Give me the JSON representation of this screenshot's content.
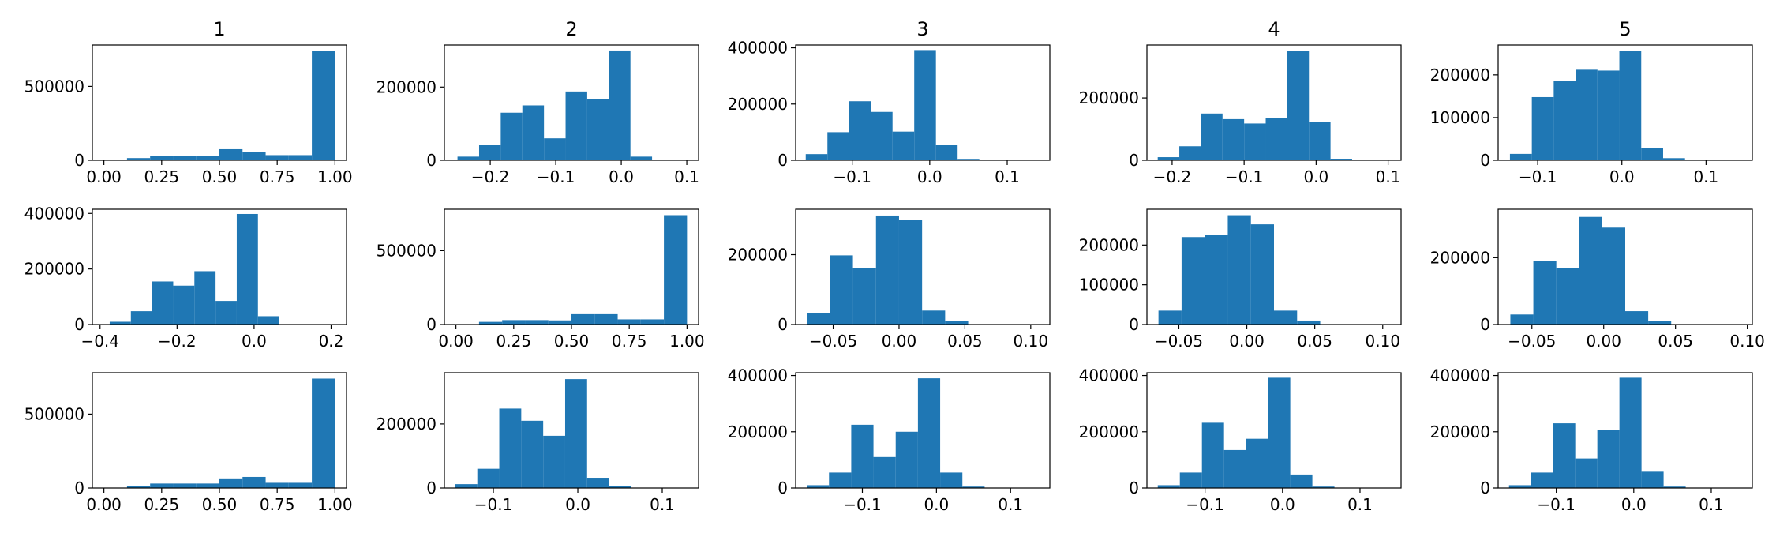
{
  "chart_data": {
    "type": "bar",
    "layout": "grid of histograms, 3 rows x 5 columns",
    "bar_color": "#1f77b4",
    "column_titles": [
      "1",
      "2",
      "3",
      "4",
      "5"
    ],
    "panels": [
      {
        "xlim": [
          -0.05,
          1.05
        ],
        "ylim": [
          0,
          780000
        ],
        "bin_edges": [
          0.0,
          0.1,
          0.2,
          0.3,
          0.4,
          0.5,
          0.6,
          0.7,
          0.8,
          0.9,
          1.0
        ],
        "counts": [
          5000,
          15000,
          30000,
          28000,
          28000,
          75000,
          58000,
          35000,
          35000,
          740000
        ],
        "xticks": [
          0.0,
          0.25,
          0.5,
          0.75,
          1.0
        ],
        "xticklabels": [
          "0.00",
          "0.25",
          "0.50",
          "0.75",
          "1.00"
        ],
        "yticks": [
          0,
          500000
        ],
        "yticklabels": [
          "0",
          "500000"
        ]
      },
      {
        "xlim": [
          -0.27,
          0.118
        ],
        "ylim": [
          0,
          315000
        ],
        "bin_edges": [
          -0.25,
          -0.217,
          -0.184,
          -0.151,
          -0.118,
          -0.085,
          -0.052,
          -0.019,
          0.014,
          0.047,
          0.08
        ],
        "counts": [
          10000,
          43000,
          130000,
          150000,
          60000,
          188000,
          168000,
          300000,
          10000,
          0
        ],
        "xticks": [
          -0.2,
          -0.1,
          0.0,
          0.1
        ],
        "xticklabels": [
          "−0.2",
          "−0.1",
          "0.0",
          "0.1"
        ],
        "yticks": [
          0,
          200000
        ],
        "yticklabels": [
          "0",
          "200000"
        ]
      },
      {
        "xlim": [
          -0.173,
          0.155
        ],
        "ylim": [
          0,
          410000
        ],
        "bin_edges": [
          -0.16,
          -0.132,
          -0.104,
          -0.076,
          -0.048,
          -0.02,
          0.008,
          0.036,
          0.064,
          0.092,
          0.12
        ],
        "counts": [
          22000,
          100000,
          210000,
          172000,
          102000,
          392000,
          55000,
          5000,
          1000,
          500
        ],
        "xticks": [
          -0.1,
          0.0,
          0.1
        ],
        "xticklabels": [
          "−0.1",
          "0.0",
          "0.1"
        ],
        "yticks": [
          0,
          200000,
          400000
        ],
        "yticklabels": [
          "0",
          "200000",
          "400000"
        ]
      },
      {
        "xlim": [
          -0.235,
          0.118
        ],
        "ylim": [
          0,
          370000
        ],
        "bin_edges": [
          -0.22,
          -0.19,
          -0.16,
          -0.13,
          -0.1,
          -0.07,
          -0.04,
          -0.01,
          0.02,
          0.05,
          0.08
        ],
        "counts": [
          10000,
          45000,
          150000,
          132000,
          118000,
          135000,
          350000,
          122000,
          5000,
          500
        ],
        "xticks": [
          -0.2,
          -0.1,
          0.0,
          0.1
        ],
        "xticklabels": [
          "−0.2",
          "−0.1",
          "0.0",
          "0.1"
        ],
        "yticks": [
          0,
          200000
        ],
        "yticklabels": [
          "0",
          "200000"
        ]
      },
      {
        "xlim": [
          -0.147,
          0.155
        ],
        "ylim": [
          0,
          270000
        ],
        "bin_edges": [
          -0.133,
          -0.107,
          -0.081,
          -0.055,
          -0.029,
          -0.003,
          0.023,
          0.049,
          0.075,
          0.101,
          0.127
        ],
        "counts": [
          15000,
          148000,
          185000,
          212000,
          210000,
          257000,
          28000,
          5000,
          1000,
          500
        ],
        "xticks": [
          -0.1,
          0.0,
          0.1
        ],
        "xticklabels": [
          "−0.1",
          "0.0",
          "0.1"
        ],
        "yticks": [
          0,
          100000,
          200000
        ],
        "yticklabels": [
          "0",
          "100000",
          "200000"
        ]
      },
      {
        "xlim": [
          -0.42,
          0.24
        ],
        "ylim": [
          0,
          415000
        ],
        "bin_edges": [
          -0.375,
          -0.32,
          -0.265,
          -0.21,
          -0.155,
          -0.1,
          -0.045,
          0.01,
          0.065,
          0.12,
          0.175
        ],
        "counts": [
          10000,
          48000,
          155000,
          140000,
          192000,
          85000,
          398000,
          30000,
          1000,
          500
        ],
        "xticks": [
          -0.4,
          -0.2,
          0.0,
          0.2
        ],
        "xticklabels": [
          "−0.4",
          "−0.2",
          "0.0",
          "0.2"
        ],
        "yticks": [
          0,
          200000,
          400000
        ],
        "yticklabels": [
          "0",
          "200000",
          "400000"
        ]
      },
      {
        "xlim": [
          -0.05,
          1.05
        ],
        "ylim": [
          0,
          780000
        ],
        "bin_edges": [
          0.0,
          0.1,
          0.2,
          0.3,
          0.4,
          0.5,
          0.6,
          0.7,
          0.8,
          0.9,
          1.0
        ],
        "counts": [
          2000,
          18000,
          30000,
          30000,
          28000,
          70000,
          70000,
          35000,
          35000,
          740000
        ],
        "xticks": [
          0.0,
          0.25,
          0.5,
          0.75,
          1.0
        ],
        "xticklabels": [
          "0.00",
          "0.25",
          "0.50",
          "0.75",
          "1.00"
        ],
        "yticks": [
          0,
          500000
        ],
        "yticklabels": [
          "0",
          "500000"
        ]
      },
      {
        "xlim": [
          -0.0785,
          0.1145
        ],
        "ylim": [
          0,
          330000
        ],
        "bin_edges": [
          -0.07,
          -0.0525,
          -0.035,
          -0.0175,
          0.0,
          0.0175,
          0.035,
          0.0525,
          0.07,
          0.0875,
          0.105
        ],
        "counts": [
          32000,
          198000,
          162000,
          312000,
          300000,
          40000,
          10000,
          1000,
          500,
          500
        ],
        "xticks": [
          -0.05,
          0.0,
          0.05,
          0.1
        ],
        "xticklabels": [
          "−0.05",
          "0.00",
          "0.05",
          "0.10"
        ],
        "yticks": [
          0,
          200000
        ],
        "yticklabels": [
          "0",
          "200000"
        ]
      },
      {
        "xlim": [
          -0.0735,
          0.1135
        ],
        "ylim": [
          0,
          290000
        ],
        "bin_edges": [
          -0.065,
          -0.048,
          -0.031,
          -0.014,
          0.003,
          0.02,
          0.037,
          0.054,
          0.071,
          0.088,
          0.105
        ],
        "counts": [
          35000,
          220000,
          225000,
          275000,
          252000,
          35000,
          10000,
          1000,
          500,
          500
        ],
        "xticks": [
          -0.05,
          0.0,
          0.05,
          0.1
        ],
        "xticklabels": [
          "−0.05",
          "0.00",
          "0.05",
          "0.10"
        ],
        "yticks": [
          0,
          100000,
          200000
        ],
        "yticklabels": [
          "0",
          "100000",
          "200000"
        ]
      },
      {
        "xlim": [
          -0.0735,
          0.1035
        ],
        "ylim": [
          0,
          345000
        ],
        "bin_edges": [
          -0.065,
          -0.049,
          -0.033,
          -0.017,
          -0.001,
          0.015,
          0.031,
          0.047,
          0.063,
          0.079,
          0.095
        ],
        "counts": [
          30000,
          190000,
          170000,
          322000,
          290000,
          40000,
          10000,
          1000,
          500,
          500
        ],
        "xticks": [
          -0.05,
          0.0,
          0.05,
          0.1
        ],
        "xticklabels": [
          "−0.05",
          "0.00",
          "0.05",
          "0.10"
        ],
        "yticks": [
          0,
          200000
        ],
        "yticklabels": [
          "0",
          "200000"
        ]
      },
      {
        "xlim": [
          -0.05,
          1.05
        ],
        "ylim": [
          0,
          780000
        ],
        "bin_edges": [
          0.0,
          0.1,
          0.2,
          0.3,
          0.4,
          0.5,
          0.6,
          0.7,
          0.8,
          0.9,
          1.0
        ],
        "counts": [
          2000,
          12000,
          30000,
          30000,
          30000,
          65000,
          75000,
          35000,
          35000,
          740000
        ],
        "xticks": [
          0.0,
          0.25,
          0.5,
          0.75,
          1.0
        ],
        "xticklabels": [
          "0.00",
          "0.25",
          "0.50",
          "0.75",
          "1.00"
        ],
        "yticks": [
          0,
          500000
        ],
        "yticklabels": [
          "0",
          "500000"
        ]
      },
      {
        "xlim": [
          -0.158,
          0.143
        ],
        "ylim": [
          0,
          360000
        ],
        "bin_edges": [
          -0.145,
          -0.119,
          -0.093,
          -0.067,
          -0.041,
          -0.015,
          0.011,
          0.037,
          0.063,
          0.089,
          0.115
        ],
        "counts": [
          12000,
          60000,
          248000,
          210000,
          163000,
          340000,
          32000,
          5000,
          1000,
          500
        ],
        "xticks": [
          -0.1,
          0.0,
          0.1
        ],
        "xticklabels": [
          "−0.1",
          "0.0",
          "0.1"
        ],
        "yticks": [
          0,
          200000
        ],
        "yticklabels": [
          "0",
          "200000"
        ]
      },
      {
        "xlim": [
          -0.19,
          0.153
        ],
        "ylim": [
          0,
          410000
        ],
        "bin_edges": [
          -0.175,
          -0.145,
          -0.115,
          -0.085,
          -0.055,
          -0.025,
          0.005,
          0.035,
          0.065,
          0.095,
          0.125
        ],
        "counts": [
          10000,
          55000,
          225000,
          110000,
          200000,
          390000,
          55000,
          5000,
          1000,
          500
        ],
        "xticks": [
          -0.1,
          0.0,
          0.1
        ],
        "xticklabels": [
          "−0.1",
          "0.0",
          "0.1"
        ],
        "yticks": [
          0,
          200000,
          400000
        ],
        "yticklabels": [
          "0",
          "200000",
          "400000"
        ]
      },
      {
        "xlim": [
          -0.175,
          0.153
        ],
        "ylim": [
          0,
          410000
        ],
        "bin_edges": [
          -0.161,
          -0.1325,
          -0.104,
          -0.0755,
          -0.047,
          -0.0185,
          0.01,
          0.0385,
          0.067,
          0.0955,
          0.124
        ],
        "counts": [
          10000,
          55000,
          232000,
          135000,
          175000,
          392000,
          48000,
          5000,
          1000,
          500
        ],
        "xticks": [
          -0.1,
          0.0,
          0.1
        ],
        "xticklabels": [
          "−0.1",
          "0.0",
          "0.1"
        ],
        "yticks": [
          0,
          200000,
          400000
        ],
        "yticklabels": [
          "0",
          "200000",
          "400000"
        ]
      },
      {
        "xlim": [
          -0.175,
          0.153
        ],
        "ylim": [
          0,
          410000
        ],
        "bin_edges": [
          -0.161,
          -0.1325,
          -0.104,
          -0.0755,
          -0.047,
          -0.0185,
          0.01,
          0.0385,
          0.067,
          0.0955,
          0.124
        ],
        "counts": [
          10000,
          55000,
          230000,
          105000,
          205000,
          392000,
          58000,
          5000,
          1000,
          500
        ],
        "xticks": [
          -0.1,
          0.0,
          0.1
        ],
        "xticklabels": [
          "−0.1",
          "0.0",
          "0.1"
        ],
        "yticks": [
          0,
          200000,
          400000
        ],
        "yticklabels": [
          "0",
          "200000",
          "400000"
        ]
      }
    ]
  }
}
